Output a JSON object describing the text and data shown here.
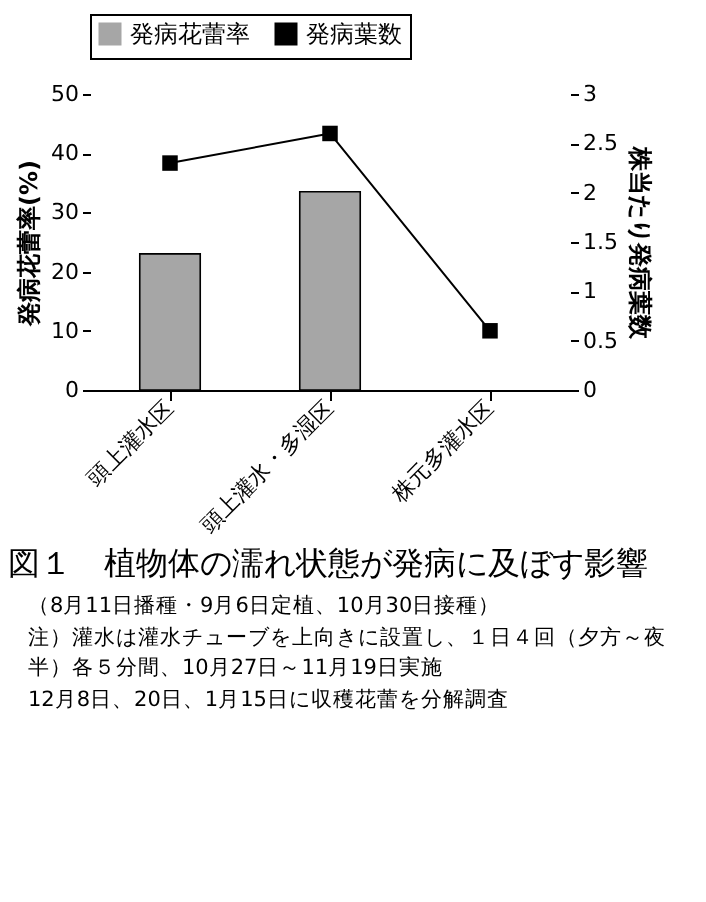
{
  "chart_data": {
    "type": "bar",
    "title": "図１　植物体の濡れ状態が発病に及ぼす影響",
    "annotations": [
      "（8月11日播種・9月6日定植、10月30日接種）",
      "注）灌水は灌水チューブを上向きに設置し、１日４回（夕方～夜半）各５分間、10月27日～11月19日実施",
      "12月8日、20日、1月15日に収穫花蕾を分解調査"
    ],
    "ylabel": "発病花蕾率(%)",
    "y2label": "株当たり発病葉数",
    "categories": [
      "頭上灌水区",
      "頭上灌水・多湿区",
      "株元多灌水区"
    ],
    "series": [
      {
        "name": "発病花蕾率",
        "color": "#a6a6a6",
        "values": [
          23,
          33.5,
          null
        ]
      },
      {
        "name": "発病葉数",
        "type": "line",
        "axis": "y2",
        "color": "#000000",
        "values": [
          2.3,
          2.6,
          0.6
        ]
      }
    ],
    "ylim": [
      0,
      50
    ],
    "yticks": [
      0,
      10,
      20,
      30,
      40,
      50
    ],
    "y2lim": [
      0,
      3
    ],
    "y2ticks": [
      0,
      0.5,
      1,
      1.5,
      2,
      2.5,
      3
    ],
    "legend": "top",
    "marker": "square",
    "grid": false
  }
}
